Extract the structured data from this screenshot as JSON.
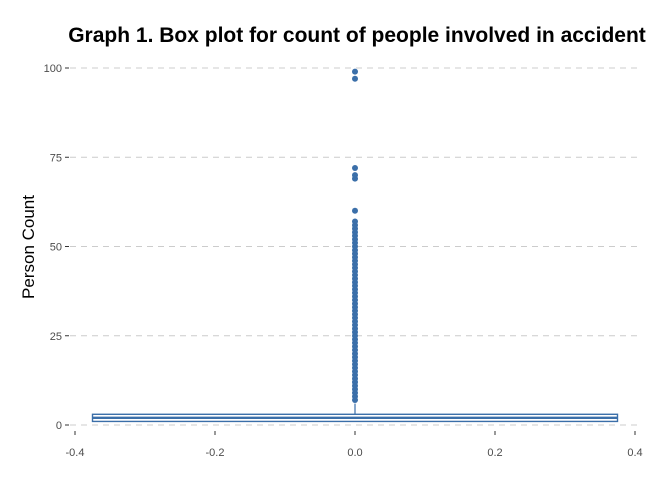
{
  "chart_data": {
    "type": "box",
    "title": "Graph 1. Box plot for count of people involved in accident",
    "xlabel": "",
    "ylabel": "Person Count",
    "xlim": [
      -0.4,
      0.4
    ],
    "ylim": [
      0,
      100
    ],
    "x_ticks": [
      "-0.4",
      "-0.2",
      "0.0",
      "0.2",
      "0.4"
    ],
    "y_ticks": [
      "0",
      "25",
      "50",
      "75",
      "100"
    ],
    "grid": "horizontal dashed",
    "color": "#3b6fa9",
    "box": {
      "x_center": 0.0,
      "x_from": -0.375,
      "x_to": 0.375,
      "q1": 1,
      "median": 2,
      "q3": 3,
      "whisker_low": 1,
      "whisker_high": 6
    },
    "outliers": [
      7,
      8,
      9,
      10,
      11,
      12,
      13,
      14,
      15,
      16,
      17,
      18,
      19,
      20,
      21,
      22,
      23,
      24,
      25,
      26,
      27,
      28,
      29,
      30,
      31,
      32,
      33,
      34,
      35,
      36,
      37,
      38,
      39,
      40,
      41,
      42,
      43,
      44,
      45,
      46,
      47,
      48,
      49,
      50,
      51,
      52,
      53,
      54,
      55,
      56,
      57,
      60,
      69,
      70,
      72,
      97,
      99
    ]
  }
}
